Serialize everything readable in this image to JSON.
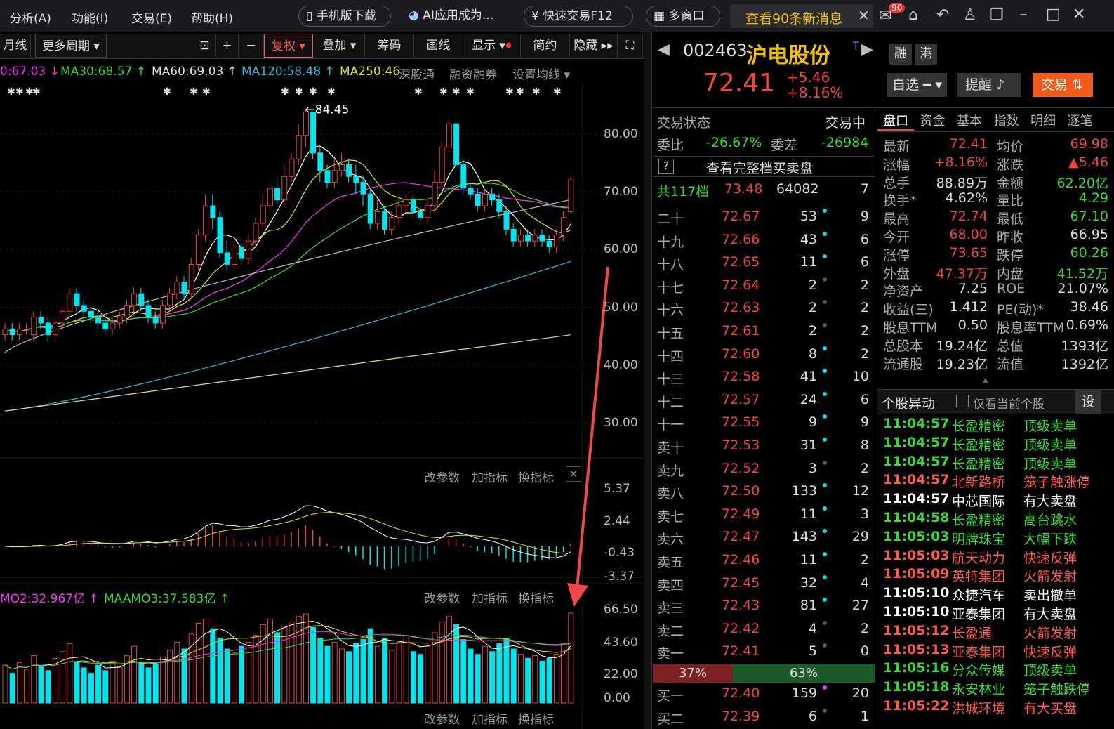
{
  "menu": {
    "items": [
      "分析(A)",
      "功能(I)",
      "交易(E)",
      "帮助(H)"
    ],
    "mobile": "手机版下载",
    "ai": "AI应用成为...",
    "quick": "快速交易F12",
    "multi": "多窗口",
    "news": "查看90条新消息",
    "badge": "90"
  },
  "toolbar": {
    "period": "月线",
    "more": "更多周期",
    "fq": "复权",
    "overlay": "叠加",
    "chip": "筹码",
    "draw": "画线",
    "display": "显示",
    "simple": "简约",
    "hide": "隐藏"
  },
  "ma": {
    "ma20": "0:67.03",
    "ma30": "MA30:68.57",
    "ma60": "MA60:69.03",
    "ma120": "MA120:58.48",
    "ma250": "MA250:46",
    "sgt": "深股通",
    "margin": "融资融券",
    "setma": "设置均线"
  },
  "colors": {
    "up": "#f0453a",
    "down": "#00e5ee",
    "ma5": "#ffffff",
    "ma10": "#e6e600",
    "ma20": "#ff33ff",
    "ma30": "#33dd33",
    "ma60": "#bbbbbb",
    "ma120": "#22bbdd",
    "ma250": "#dddd88"
  },
  "price_axis": [
    "80.00",
    "70.00",
    "60.00",
    "50.00",
    "40.00",
    "30.00"
  ],
  "high_label": "84.45",
  "macd": {
    "labels": [
      "5.37",
      "2.44",
      "-0.43",
      "-3.37"
    ]
  },
  "vol": {
    "mo2": "MO2:32.967亿",
    "maamo3": "MAAMO3:37.583亿",
    "labels": [
      "66.50",
      "43.60",
      "22.00",
      "0.00"
    ]
  },
  "panel": {
    "param": "改参数",
    "add": "加指标",
    "swap": "换指标"
  },
  "stock": {
    "code": "002463",
    "name": "沪电股份",
    "price": "72.41",
    "chg": "+5.46",
    "pct": "+8.16%",
    "rong": "融",
    "gang": "港",
    "zixuan": "自选",
    "remind": "提醒",
    "trade": "交易"
  },
  "orderbook": {
    "status_l": "交易状态",
    "status_r": "交易中",
    "wb_l": "委比",
    "wb_v": "-26.67%",
    "wc_l": "委差",
    "wc_v": "-26984",
    "full": "查看完整档买卖盘",
    "total": "共117档",
    "total_p": "73.48",
    "total_v": "64082",
    "total_n": "7",
    "asks": [
      [
        "二十",
        "72.67",
        "53",
        "9"
      ],
      [
        "十九",
        "72.66",
        "43",
        "6"
      ],
      [
        "十八",
        "72.65",
        "11",
        "6"
      ],
      [
        "十七",
        "72.64",
        "2",
        "2"
      ],
      [
        "十六",
        "72.63",
        "2",
        "2"
      ],
      [
        "十五",
        "72.61",
        "2",
        "2"
      ],
      [
        "十四",
        "72.60",
        "8",
        "2"
      ],
      [
        "十三",
        "72.58",
        "41",
        "10"
      ],
      [
        "十二",
        "72.57",
        "24",
        "6"
      ],
      [
        "十一",
        "72.55",
        "9",
        "9"
      ],
      [
        "卖十",
        "72.53",
        "31",
        "8"
      ],
      [
        "卖九",
        "72.52",
        "3",
        "2"
      ],
      [
        "卖八",
        "72.50",
        "133",
        "12"
      ],
      [
        "卖七",
        "72.49",
        "11",
        "3"
      ],
      [
        "卖六",
        "72.47",
        "143",
        "29"
      ],
      [
        "卖五",
        "72.46",
        "11",
        "2"
      ],
      [
        "卖四",
        "72.45",
        "32",
        "4"
      ],
      [
        "卖三",
        "72.43",
        "81",
        "27"
      ],
      [
        "卖二",
        "72.42",
        "4",
        "2"
      ],
      [
        "卖一",
        "72.41",
        "5",
        "0"
      ]
    ],
    "ratio_l": "37%",
    "ratio_r": "63%",
    "bids": [
      [
        "买一",
        "72.40",
        "159",
        "20"
      ],
      [
        "买二",
        "72.39",
        "6",
        "1"
      ]
    ]
  },
  "tabs": [
    "盘口",
    "资金",
    "基本",
    "指数",
    "明细",
    "逐笔"
  ],
  "quote": [
    [
      "最新",
      "72.41",
      "均价",
      "69.98"
    ],
    [
      "涨幅",
      "+8.16%",
      "涨跌",
      "▲5.46"
    ],
    [
      "总手",
      "88.89万",
      "金额",
      "62.20亿"
    ],
    [
      "换手*",
      "4.62%",
      "量比",
      "4.29"
    ],
    [
      "最高",
      "72.74",
      "最低",
      "67.10"
    ],
    [
      "今开",
      "68.00",
      "昨收",
      "66.95"
    ],
    [
      "涨停",
      "73.65",
      "跌停",
      "60.26"
    ],
    [
      "外盘",
      "47.37万",
      "内盘",
      "41.52万"
    ],
    [
      "净资产",
      "7.25",
      "ROE",
      "21.07%"
    ],
    [
      "收益(三)",
      "1.412",
      "PE(动)*",
      "38.46"
    ],
    [
      "股息TTM",
      "0.50",
      "股息率TTM",
      "0.69%"
    ],
    [
      "总股本",
      "19.24亿",
      "总值",
      "1393亿"
    ],
    [
      "流通股",
      "19.23亿",
      "流值",
      "1392亿"
    ]
  ],
  "alerts_head": {
    "title": "个股异动",
    "only": "仅看当前个股",
    "set": "设"
  },
  "alerts": [
    [
      "11:04:57",
      "长盈精密",
      "顶级卖单"
    ],
    [
      "11:04:57",
      "长盈精密",
      "顶级卖单"
    ],
    [
      "11:04:57",
      "长盈精密",
      "顶级卖单"
    ],
    [
      "11:04:57",
      "北新路桥",
      "笼子触涨停"
    ],
    [
      "11:04:57",
      "中芯国际",
      "有大卖盘"
    ],
    [
      "11:04:58",
      "长盈精密",
      "高台跳水"
    ],
    [
      "11:05:03",
      "明牌珠宝",
      "大幅下跌"
    ],
    [
      "11:05:03",
      "航天动力",
      "快速反弹"
    ],
    [
      "11:05:09",
      "英特集团",
      "火箭发射"
    ],
    [
      "11:05:10",
      "众捷汽车",
      "卖出撤单"
    ],
    [
      "11:05:10",
      "亚泰集团",
      "有大卖盘"
    ],
    [
      "11:05:12",
      "长盈通",
      "火箭发射"
    ],
    [
      "11:05:13",
      "亚泰集团",
      "快速反弹"
    ],
    [
      "11:05:16",
      "分众传媒",
      "顶级卖单"
    ],
    [
      "11:05:18",
      "永安林业",
      "笼子触跌停"
    ],
    [
      "11:05:22",
      "洪城环境",
      "有大买盘"
    ]
  ],
  "chart_data": {
    "type": "candlestick",
    "ylim": [
      25,
      88
    ],
    "high": 84.45,
    "candles": [
      [
        46,
        47,
        45,
        48
      ],
      [
        47,
        46,
        45,
        48
      ],
      [
        46,
        47,
        45,
        48
      ],
      [
        47,
        47,
        46,
        48
      ],
      [
        46,
        49,
        45,
        50
      ],
      [
        49,
        48,
        47,
        50
      ],
      [
        48,
        46,
        45,
        49
      ],
      [
        46,
        48,
        45,
        49
      ],
      [
        48,
        50,
        47,
        51
      ],
      [
        50,
        53,
        49,
        54
      ],
      [
        53,
        51,
        50,
        54
      ],
      [
        51,
        50,
        49,
        52
      ],
      [
        50,
        49,
        48,
        51
      ],
      [
        49,
        48,
        47,
        50
      ],
      [
        48,
        47,
        46,
        49
      ],
      [
        47,
        48,
        46,
        49
      ],
      [
        48,
        49,
        47,
        50
      ],
      [
        49,
        51,
        48,
        52
      ],
      [
        51,
        53,
        50,
        54
      ],
      [
        53,
        51,
        50,
        54
      ],
      [
        51,
        49,
        48,
        52
      ],
      [
        49,
        48,
        47,
        50
      ],
      [
        48,
        51,
        47,
        52
      ],
      [
        51,
        53,
        50,
        54
      ],
      [
        53,
        55,
        52,
        56
      ],
      [
        55,
        53,
        52,
        56
      ],
      [
        53,
        58,
        52,
        59
      ],
      [
        58,
        63,
        57,
        64
      ],
      [
        63,
        68,
        62,
        70
      ],
      [
        68,
        66,
        64,
        70
      ],
      [
        66,
        60,
        59,
        67
      ],
      [
        60,
        58,
        57,
        62
      ],
      [
        58,
        61,
        57,
        62
      ],
      [
        61,
        59,
        58,
        62
      ],
      [
        59,
        62,
        58,
        63
      ],
      [
        62,
        65,
        61,
        66
      ],
      [
        65,
        68,
        64,
        70
      ],
      [
        68,
        71,
        67,
        72
      ],
      [
        71,
        69,
        68,
        73
      ],
      [
        69,
        73,
        68,
        75
      ],
      [
        73,
        76,
        72,
        77
      ],
      [
        76,
        80,
        75,
        82
      ],
      [
        80,
        84,
        78,
        84.45
      ],
      [
        84,
        77,
        76,
        84
      ],
      [
        77,
        74,
        72,
        78
      ],
      [
        74,
        72,
        71,
        75
      ],
      [
        72,
        74,
        71,
        76
      ],
      [
        74,
        75,
        73,
        77
      ],
      [
        75,
        73,
        72,
        76
      ],
      [
        73,
        72,
        70,
        75
      ],
      [
        72,
        70,
        68,
        73
      ],
      [
        70,
        65,
        64,
        71
      ],
      [
        65,
        67,
        64,
        69
      ],
      [
        67,
        64,
        63,
        68
      ],
      [
        64,
        66,
        63,
        67
      ],
      [
        66,
        68,
        65,
        69
      ],
      [
        68,
        69,
        67,
        70
      ],
      [
        69,
        67,
        66,
        70
      ],
      [
        67,
        66,
        65,
        68
      ],
      [
        66,
        68,
        65,
        69
      ],
      [
        68,
        72,
        67,
        74
      ],
      [
        72,
        78,
        71,
        79
      ],
      [
        78,
        82,
        77,
        83
      ],
      [
        82,
        75,
        74,
        82
      ],
      [
        75,
        71,
        70,
        76
      ],
      [
        71,
        70,
        69,
        72
      ],
      [
        70,
        68,
        67,
        71
      ],
      [
        68,
        70,
        67,
        71
      ],
      [
        70,
        69,
        68,
        71
      ],
      [
        69,
        67,
        66,
        70
      ],
      [
        67,
        64,
        63,
        68
      ],
      [
        64,
        62,
        61,
        65
      ],
      [
        62,
        63,
        61,
        64
      ],
      [
        63,
        62,
        61,
        64
      ],
      [
        62,
        63,
        61,
        64
      ],
      [
        63,
        62,
        61,
        64
      ],
      [
        62,
        61,
        60,
        63
      ],
      [
        61,
        63,
        60,
        64
      ],
      [
        63,
        66,
        62,
        67
      ],
      [
        66.95,
        72.41,
        67.1,
        72.74
      ]
    ],
    "vol": [
      28,
      22,
      30,
      25,
      35,
      27,
      24,
      33,
      38,
      44,
      30,
      26,
      22,
      28,
      24,
      31,
      27,
      35,
      42,
      30,
      26,
      29,
      34,
      39,
      45,
      40,
      51,
      59,
      62,
      55,
      48,
      40,
      37,
      42,
      45,
      50,
      58,
      62,
      52,
      57,
      60,
      64,
      66,
      56,
      48,
      42,
      45,
      40,
      38,
      44,
      47,
      55,
      42,
      48,
      39,
      45,
      50,
      38,
      36,
      42,
      52,
      60,
      64,
      58,
      47,
      40,
      36,
      42,
      38,
      44,
      48,
      40,
      36,
      33,
      35,
      31,
      33,
      36,
      44,
      66.5
    ]
  }
}
